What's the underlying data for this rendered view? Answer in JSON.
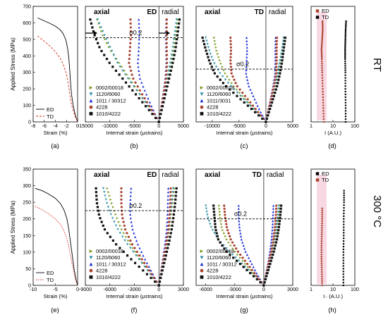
{
  "figure": {
    "row_labels": [
      "RT",
      "300 °C"
    ],
    "panel_letters": [
      "(a)",
      "(b)",
      "(c)",
      "(d)",
      "(e)",
      "(f)",
      "(g)",
      "(h)"
    ]
  },
  "colors": {
    "ED": "#000000",
    "TD": "#d42a1c",
    "s0002": "#7d9a1f",
    "s1120": "#2e8fa6",
    "s1011": "#1f2fd6",
    "s4228": "#a8412e",
    "s1010": "#111111",
    "pink": "#f5c9d7"
  },
  "chart_data": [
    {
      "id": "a",
      "type": "line",
      "ylabel": "Applied Stress (MPa)",
      "xlabel": "Strain (%)",
      "xlim": [
        -8,
        0
      ],
      "ylim": [
        0,
        700
      ],
      "xticks": [
        -8,
        -6,
        -4,
        -2,
        0
      ],
      "xtick_labels": [
        "-8",
        "-6",
        "-4",
        "-2",
        "0"
      ],
      "yticks": [
        0,
        100,
        200,
        300,
        400,
        500,
        600,
        700
      ],
      "legend": [
        "ED",
        "TD"
      ],
      "legend_loc": "bottom-left",
      "series": [
        {
          "name": "ED",
          "style": "solid",
          "x": [
            -7.2,
            -6.0,
            -5.0,
            -4.0,
            -3.2,
            -2.6,
            -2.1,
            -1.8,
            -1.6,
            -1.45,
            -1.3,
            -1.1,
            -0.8,
            -0.4,
            0.0
          ],
          "y": [
            630,
            612,
            597,
            580,
            560,
            535,
            495,
            445,
            395,
            330,
            250,
            170,
            100,
            40,
            0
          ]
        },
        {
          "name": "TD",
          "style": "dashed",
          "x": [
            -7.2,
            -6.0,
            -5.0,
            -4.0,
            -3.2,
            -2.6,
            -2.1,
            -1.8,
            -1.6,
            -1.45,
            -1.3,
            -1.1,
            -0.8,
            -0.4,
            0.0
          ],
          "y": [
            520,
            488,
            460,
            425,
            390,
            350,
            300,
            255,
            215,
            175,
            140,
            105,
            70,
            30,
            0
          ]
        }
      ]
    },
    {
      "id": "b",
      "type": "scatter",
      "panel_left": "axial",
      "panel_right": "radial",
      "dir_label": "ED",
      "sigma_label": "σ0.2",
      "sigma_y": 510,
      "xlabel": "Internal strain (μstrains)",
      "xlim": [
        -15000,
        5000
      ],
      "ylim": [
        0,
        700
      ],
      "zero_x": 0,
      "xticks": [
        -15000,
        -10000,
        -5000,
        0,
        5000
      ],
      "xtick_labels": [
        "-15000",
        "-10000",
        "-5000",
        "0",
        "5000"
      ],
      "legend": [
        "0002/00018",
        "1120/6060",
        "1011 / 30312",
        "4228",
        "1010/4222"
      ],
      "series": [
        {
          "name": "0002/00018",
          "key": "s0002",
          "axial": [
            0,
            -2000,
            -4000,
            -6000,
            -8000,
            -10000,
            -11500,
            -12500
          ],
          "radial": [
            0,
            600,
            1200,
            1900,
            2600,
            3200,
            3600,
            3900
          ],
          "top": 620
        },
        {
          "name": "1120/6060",
          "key": "s1120",
          "axial": [
            0,
            -2100,
            -4200,
            -6400,
            -8400,
            -9800,
            -11200,
            -12500
          ],
          "radial": [
            0,
            550,
            1100,
            1700,
            2300,
            2800,
            3200,
            3600
          ],
          "top": 620
        },
        {
          "name": "1011 / 30312",
          "key": "s1011",
          "axial": [
            0,
            -1400,
            -2700,
            -3900,
            -4300,
            -4100,
            -4000,
            -4100
          ],
          "radial": [
            0,
            450,
            900,
            1300,
            1500,
            1450,
            1400,
            1500
          ],
          "top": 620
        },
        {
          "name": "4228",
          "key": "s4228",
          "axial": [
            0,
            -1800,
            -3600,
            -5300,
            -6100,
            -5900,
            -5700,
            -5800
          ],
          "radial": [
            0,
            500,
            1000,
            1450,
            1650,
            1600,
            1550,
            1600
          ],
          "top": 620
        },
        {
          "name": "1010/4222",
          "key": "s1010",
          "axial": [
            0,
            -2500,
            -5000,
            -7500,
            -10000,
            -12000,
            -13200,
            -14000
          ],
          "radial": [
            0,
            700,
            1400,
            2100,
            2800,
            3400,
            3800,
            4200
          ],
          "top": 620
        }
      ]
    },
    {
      "id": "c",
      "type": "scatter",
      "panel_left": "axial",
      "panel_right": "radial",
      "dir_label": "TD",
      "sigma_label": "σ0.2",
      "sigma_y": 320,
      "xlabel": "Internal strain (μstrains)",
      "xlim": [
        -13000,
        5000
      ],
      "ylim": [
        0,
        700
      ],
      "zero_x": 0,
      "xticks": [
        -10000,
        -5000,
        0,
        5000
      ],
      "xtick_labels": [
        "-10000",
        "-5000",
        "0",
        "5000"
      ],
      "legend": [
        "0002/00018",
        "1120/6060",
        "1011/3031",
        "4228",
        "1010/4222"
      ],
      "series": [
        {
          "name": "0002/00018",
          "key": "s0002",
          "axial": [
            0,
            -2000,
            -4000,
            -6000,
            -7500,
            -8500,
            -9200,
            -9600
          ],
          "radial": [
            0,
            600,
            1200,
            1800,
            2300,
            2700,
            3100,
            3400
          ],
          "top": 510
        },
        {
          "name": "1120/6060",
          "key": "s1120",
          "axial": [
            0,
            -2200,
            -4400,
            -6600,
            -8500,
            -9800,
            -10600,
            -11200
          ],
          "radial": [
            0,
            550,
            1100,
            1700,
            2200,
            2600,
            3000,
            3300
          ],
          "top": 510
        },
        {
          "name": "1011/3031",
          "key": "s1011",
          "axial": [
            0,
            -1200,
            -2200,
            -3200,
            -3700,
            -3600,
            -3500,
            -3600
          ],
          "radial": [
            0,
            450,
            900,
            1350,
            1700,
            1750,
            1750,
            1800
          ],
          "top": 510
        },
        {
          "name": "4228",
          "key": "s4228",
          "axial": [
            0,
            -1800,
            -3600,
            -5400,
            -6400,
            -6600,
            -6500,
            -6600
          ],
          "radial": [
            0,
            500,
            1000,
            1500,
            1900,
            2000,
            2000,
            2050
          ],
          "top": 510
        },
        {
          "name": "1010/4222",
          "key": "s1010",
          "axial": [
            0,
            -2500,
            -5000,
            -7500,
            -9500,
            -10500,
            -11200,
            -11800
          ],
          "radial": [
            0,
            700,
            1400,
            2100,
            2600,
            3000,
            3300,
            3600
          ],
          "top": 510
        }
      ]
    },
    {
      "id": "d",
      "type": "scatter",
      "xlabel": "I (A.U.)",
      "xscale": "log",
      "xlim": [
        1,
        100
      ],
      "ylim": [
        0,
        700
      ],
      "xticks": [
        1,
        10,
        100
      ],
      "xtick_labels": [
        "1",
        "10",
        "100"
      ],
      "legend": [
        "ED",
        "TD"
      ],
      "legend_loc": "top-left",
      "series": [
        {
          "name": "ED",
          "key": "s4228",
          "x": [
            3.8,
            3.6,
            3.4,
            3.2,
            3.1,
            3.0,
            3.2,
            3.4,
            3.3
          ],
          "y": [
            0,
            100,
            200,
            300,
            380,
            440,
            500,
            560,
            620
          ]
        },
        {
          "name": "TD",
          "key": "ED",
          "x": [
            38,
            38,
            37,
            37,
            36,
            36,
            37,
            38,
            40
          ],
          "y": [
            0,
            100,
            200,
            300,
            380,
            440,
            500,
            560,
            620
          ]
        }
      ]
    },
    {
      "id": "e",
      "type": "line",
      "ylabel": "Applied Stress (MPa)",
      "xlabel": "Strain (%)",
      "xlim": [
        -10,
        0
      ],
      "ylim": [
        0,
        350
      ],
      "xticks": [
        -10,
        -5,
        0
      ],
      "xtick_labels": [
        "-10",
        "-5",
        "0"
      ],
      "yticks": [
        0,
        50,
        100,
        150,
        200,
        250,
        300,
        350
      ],
      "legend": [
        "ED",
        "TD"
      ],
      "legend_loc": "bottom-left",
      "series": [
        {
          "name": "ED",
          "style": "solid",
          "x": [
            -9.6,
            -8.0,
            -6.5,
            -5.0,
            -3.8,
            -3.0,
            -2.4,
            -2.0,
            -1.7,
            -1.4,
            -1.1,
            -0.8,
            -0.4,
            0.0
          ],
          "y": [
            292,
            285,
            275,
            262,
            245,
            225,
            200,
            170,
            140,
            110,
            80,
            50,
            20,
            0
          ]
        },
        {
          "name": "TD",
          "style": "dotted",
          "x": [
            -9.6,
            -8.0,
            -6.5,
            -5.0,
            -3.8,
            -3.0,
            -2.4,
            -2.0,
            -1.7,
            -1.4,
            -1.1,
            -0.8,
            -0.4,
            0.0
          ],
          "y": [
            238,
            228,
            215,
            200,
            182,
            162,
            140,
            118,
            96,
            76,
            56,
            36,
            14,
            0
          ]
        }
      ]
    },
    {
      "id": "f",
      "type": "scatter",
      "panel_left": "axial",
      "panel_right": "radial",
      "dir_label": "ED",
      "sigma_label": "σ0.2",
      "sigma_y": 225,
      "xlabel": "Internal strain (μstrains)",
      "xlim": [
        -9000,
        3000
      ],
      "ylim": [
        0,
        350
      ],
      "zero_x": 0,
      "xticks": [
        -9000,
        -6000,
        -3000,
        0,
        3000
      ],
      "xtick_labels": [
        "-9000",
        "-6000",
        "-3000",
        "0",
        "3000"
      ],
      "legend": [
        "0002/00018",
        "1120/6060",
        "1011 / 30312",
        "4228",
        "1010/4222"
      ],
      "series": [
        {
          "name": "0002/00018",
          "key": "s0002",
          "axial": [
            0,
            -1200,
            -2400,
            -3500,
            -4500,
            -5200,
            -5800,
            -6300
          ],
          "radial": [
            0,
            350,
            700,
            1000,
            1300,
            1500,
            1700,
            1900
          ],
          "top": 292
        },
        {
          "name": "1120/6060",
          "key": "s1120",
          "axial": [
            0,
            -1300,
            -2600,
            -3900,
            -5000,
            -5800,
            -6400,
            -6800
          ],
          "radial": [
            0,
            300,
            650,
            950,
            1200,
            1400,
            1600,
            1750
          ],
          "top": 292
        },
        {
          "name": "1011 / 30312",
          "key": "s1011",
          "axial": [
            0,
            -900,
            -1800,
            -2600,
            -3200,
            -3500,
            -3500,
            -3400
          ],
          "radial": [
            0,
            250,
            500,
            750,
            950,
            1050,
            1100,
            1150
          ],
          "top": 292
        },
        {
          "name": "4228",
          "key": "s4228",
          "axial": [
            0,
            -1100,
            -2200,
            -3300,
            -4100,
            -4500,
            -4600,
            -4600
          ],
          "radial": [
            0,
            300,
            600,
            900,
            1150,
            1300,
            1400,
            1450
          ],
          "top": 292
        },
        {
          "name": "1010/4222",
          "key": "s1010",
          "axial": [
            0,
            -1800,
            -3600,
            -5300,
            -6600,
            -7300,
            -7600,
            -7700
          ],
          "radial": [
            0,
            400,
            800,
            1200,
            1550,
            1800,
            2000,
            2150
          ],
          "top": 292
        }
      ]
    },
    {
      "id": "g",
      "type": "scatter",
      "panel_left": "axial",
      "panel_right": "radial",
      "dir_label": "TD",
      "sigma_label": "σ0.2",
      "sigma_y": 200,
      "xlabel": "Internal strain (μstrains)",
      "xlim": [
        -7000,
        3000
      ],
      "ylim": [
        0,
        350
      ],
      "zero_x": 0,
      "xticks": [
        -6000,
        -3000,
        0,
        3000
      ],
      "xtick_labels": [
        "-6000",
        "-3000",
        "0",
        "3000"
      ],
      "legend": [
        "0002/00018",
        "1120/6060",
        "1011 / 30312",
        "4228",
        "1010/4222"
      ],
      "series": [
        {
          "name": "0002/00018",
          "key": "s0002",
          "axial": [
            0,
            -1000,
            -2000,
            -3000,
            -3800,
            -4300,
            -4500,
            -4600
          ],
          "radial": [
            0,
            300,
            600,
            900,
            1200,
            1400,
            1600,
            1750
          ],
          "top": 240
        },
        {
          "name": "1120/6060",
          "key": "s1120",
          "axial": [
            0,
            -1200,
            -2400,
            -3600,
            -4700,
            -5400,
            -5800,
            -6000
          ],
          "radial": [
            0,
            280,
            560,
            850,
            1100,
            1300,
            1450,
            1550
          ],
          "top": 240
        },
        {
          "name": "1011 / 30312",
          "key": "s1011",
          "axial": [
            0,
            -700,
            -1300,
            -1900,
            -2300,
            -2500,
            -2600,
            -2600
          ],
          "radial": [
            0,
            220,
            450,
            650,
            800,
            900,
            950,
            1000
          ],
          "top": 240
        },
        {
          "name": "4228",
          "key": "s4228",
          "axial": [
            0,
            -900,
            -1800,
            -2700,
            -3400,
            -3800,
            -4000,
            -4100
          ],
          "radial": [
            0,
            260,
            520,
            780,
            1000,
            1150,
            1250,
            1300
          ],
          "top": 240
        },
        {
          "name": "1010/4222",
          "key": "s1010",
          "axial": [
            0,
            -1300,
            -2600,
            -3900,
            -4700,
            -5000,
            -5100,
            -5200
          ],
          "radial": [
            0,
            350,
            700,
            1050,
            1350,
            1550,
            1700,
            1800
          ],
          "top": 240
        }
      ]
    },
    {
      "id": "h",
      "type": "scatter",
      "xlabel": "I₋ (A.U.)",
      "xscale": "log",
      "xlim": [
        1,
        100
      ],
      "ylim": [
        0,
        350
      ],
      "xticks": [
        1,
        10,
        100
      ],
      "xtick_labels": [
        "1",
        "10",
        "100"
      ],
      "legend": [
        "ED",
        "TD"
      ],
      "legend_loc": "top-left",
      "series": [
        {
          "name": "ED",
          "key": "ED",
          "x": [
            30,
            30,
            30,
            31,
            31,
            32,
            32
          ],
          "y": [
            0,
            50,
            100,
            150,
            200,
            250,
            292
          ]
        },
        {
          "name": "TD",
          "key": "s4228",
          "x": [
            3.2,
            3.1,
            3.0,
            3.0,
            3.1,
            3.2,
            3.2
          ],
          "y": [
            0,
            40,
            80,
            120,
            160,
            200,
            238
          ]
        }
      ]
    }
  ]
}
